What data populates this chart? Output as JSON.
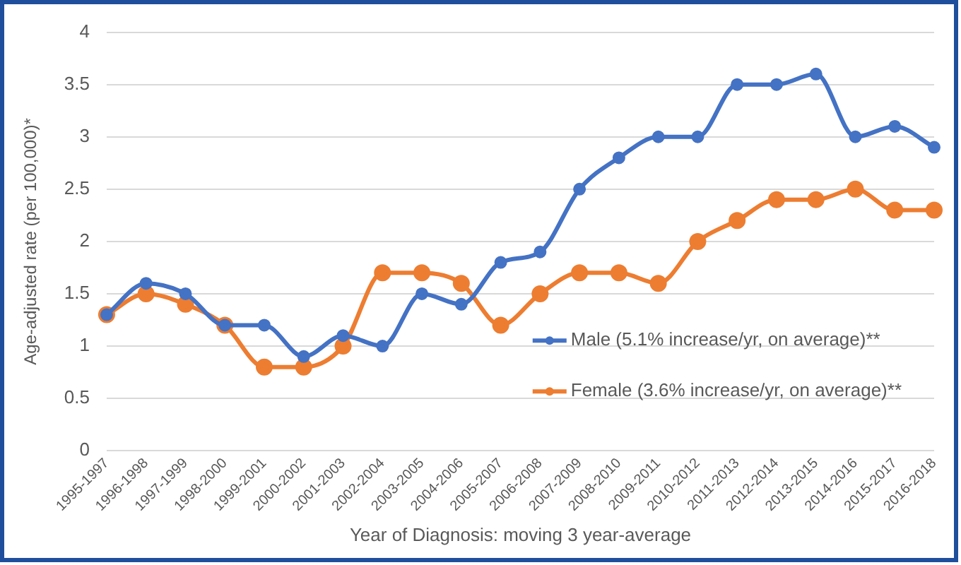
{
  "chart_data": {
    "type": "line",
    "xlabel": "Year of Diagnosis: moving 3 year-average",
    "ylabel": "Age-adjusted rate (per 100,000)*",
    "categories": [
      "1995-1997",
      "1996-1998",
      "1997-1999",
      "1998-2000",
      "1999-2001",
      "2000-2002",
      "2001-2003",
      "2002-2004",
      "2003-2005",
      "2004-2006",
      "2005-2007",
      "2006-2008",
      "2007-2009",
      "2008-2010",
      "2009-2011",
      "2010-2012",
      "2011-2013",
      "2012-2014",
      "2013-2015",
      "2014-2016",
      "2015-2017",
      "2016-2018"
    ],
    "series": [
      {
        "name": "Male (5.1% increase/yr, on average)**",
        "color": "#4472c4",
        "values": [
          1.3,
          1.6,
          1.5,
          1.2,
          1.2,
          0.9,
          1.1,
          1.0,
          1.5,
          1.4,
          1.8,
          1.9,
          2.5,
          2.8,
          3.0,
          3.0,
          3.5,
          3.5,
          3.6,
          3.0,
          3.1,
          2.9
        ]
      },
      {
        "name": "Female (3.6% increase/yr, on average)**",
        "color": "#ed7d31",
        "values": [
          1.3,
          1.5,
          1.4,
          1.2,
          0.8,
          0.8,
          1.0,
          1.7,
          1.7,
          1.6,
          1.2,
          1.5,
          1.7,
          1.7,
          1.6,
          2.0,
          2.2,
          2.4,
          2.4,
          2.5,
          2.3,
          2.3
        ]
      }
    ],
    "ylim": [
      0,
      4
    ],
    "yticks": [
      0,
      0.5,
      1,
      1.5,
      2,
      2.5,
      3,
      3.5,
      4
    ],
    "grid": "y",
    "legend": "bottom right",
    "marker": "circle",
    "line_style": "solid"
  }
}
